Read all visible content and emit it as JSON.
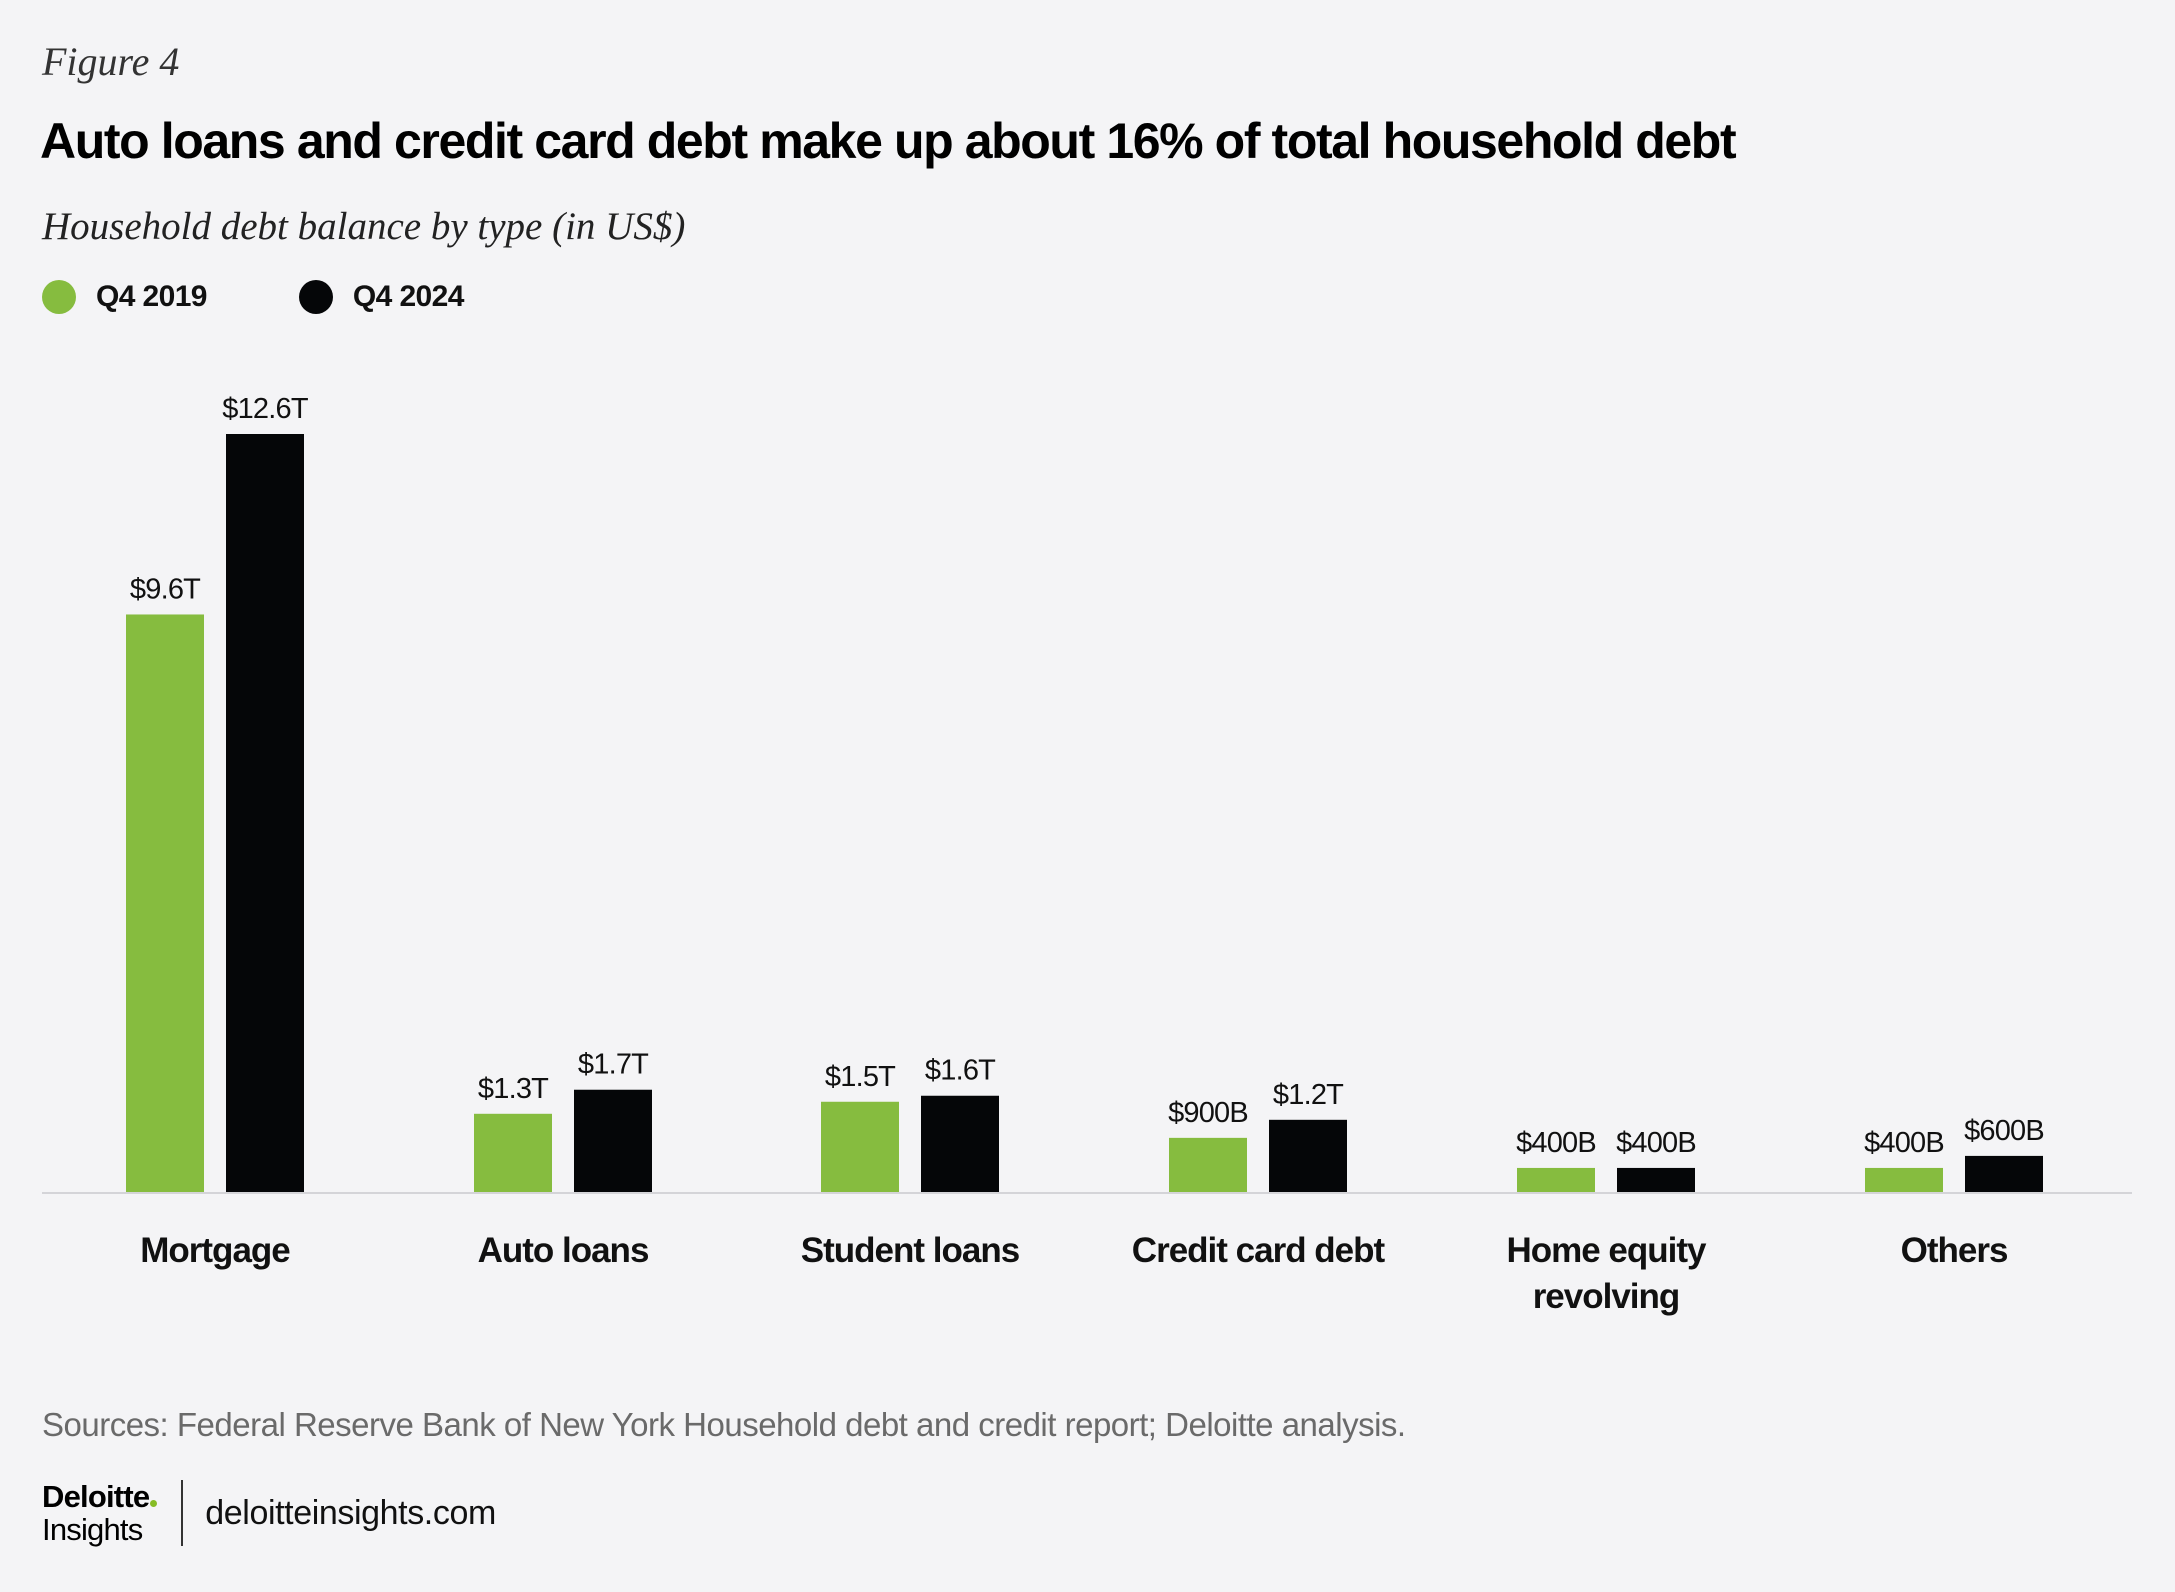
{
  "header": {
    "figure_label": "Figure 4",
    "title": "Auto loans and credit card debt make up about 16% of total household debt",
    "subtitle": "Household debt balance by type (in US$)"
  },
  "legend": [
    {
      "label": "Q4 2019",
      "color": "#86bc3f"
    },
    {
      "label": "Q4 2024",
      "color": "#050608"
    }
  ],
  "chart_data": {
    "type": "bar",
    "title": "Auto loans and credit card debt make up about 16% of total household debt",
    "subtitle": "Household debt balance by type (in US$)",
    "unit": "US$ trillions",
    "categories": [
      [
        "Mortgage"
      ],
      [
        "Auto loans"
      ],
      [
        "Student loans"
      ],
      [
        "Credit card debt"
      ],
      [
        "Home equity",
        "revolving"
      ],
      [
        "Others"
      ]
    ],
    "series": [
      {
        "name": "Q4 2019",
        "color": "#86bc3f",
        "values": [
          9.6,
          1.3,
          1.5,
          0.9,
          0.4,
          0.4
        ],
        "labels": [
          "$9.6T",
          "$1.3T",
          "$1.5T",
          "$900B",
          "$400B",
          "$400B"
        ]
      },
      {
        "name": "Q4 2024",
        "color": "#050608",
        "values": [
          12.6,
          1.7,
          1.6,
          1.2,
          0.4,
          0.6
        ],
        "labels": [
          "$12.6T",
          "$1.7T",
          "$1.6T",
          "$1.2T",
          "$400B",
          "$600B"
        ]
      }
    ],
    "ylim": [
      0,
      12.6
    ],
    "grid": false,
    "legend_position": "top-left"
  },
  "source": "Sources: Federal Reserve Bank of New York Household debt and credit report; Deloitte analysis.",
  "footer": {
    "logo_main": "Deloitte",
    "logo_sub": "Insights",
    "url": "deloitteinsights.com"
  }
}
